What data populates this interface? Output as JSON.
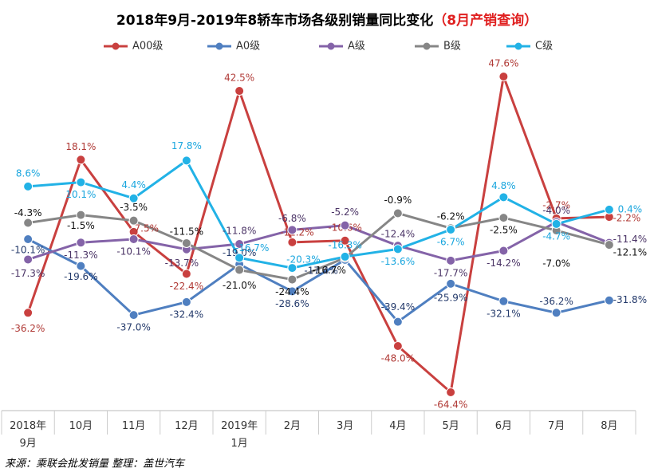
{
  "chart_data": {
    "type": "line",
    "title": "2018年9月-2019年8轿车市场各级别销量同比变化",
    "subtitle": "（8月产销查询）",
    "source": "来源：乘联会批发销量    整理：盖世汽车",
    "categories": [
      "2018年\n9月",
      "10月",
      "11月",
      "12月",
      "2019年\n1月",
      "2月",
      "3月",
      "4月",
      "5月",
      "6月",
      "7月",
      "8月"
    ],
    "series": [
      {
        "name": "A00级",
        "color": "#c9403f",
        "label_color": "#b03a36",
        "values": [
          -36.2,
          18.1,
          -7.5,
          -22.4,
          42.5,
          -11.2,
          -10.6,
          -48.0,
          -64.4,
          47.6,
          -2.7,
          -2.2
        ],
        "value_labels": [
          "-36.2%",
          "18.1%",
          "-7.5%",
          "-22.4%",
          "42.5%",
          "-11.2%",
          "-10.6%",
          "-48.0%",
          "-64.4%",
          "47.6%",
          "-2.7%",
          "-2.2%"
        ]
      },
      {
        "name": "A0级",
        "color": "#4f7fc0",
        "label_color": "#243a6b",
        "values": [
          -10.1,
          -19.6,
          -37.0,
          -32.4,
          -19.0,
          -28.6,
          -17.4,
          -39.4,
          -25.9,
          -32.1,
          -36.2,
          -31.8
        ],
        "value_labels": [
          "-10.1%",
          "-19.6%",
          "-37.0%",
          "-32.4%",
          "-19.0%",
          "-28.6%",
          "-17.4%",
          "-39.4%",
          "-25.9%",
          "-32.1%",
          "-36.2%",
          "-31.8%"
        ]
      },
      {
        "name": "A级",
        "color": "#8463a8",
        "label_color": "#4b3466",
        "values": [
          -17.3,
          -11.3,
          -10.1,
          -13.7,
          -11.8,
          -6.8,
          -5.2,
          -12.4,
          -17.7,
          -14.2,
          -4.0,
          -11.4
        ],
        "value_labels": [
          "-17.3%",
          "-11.3%",
          "-10.1%",
          "-13.7%",
          "-11.8%",
          "-6.8%",
          "-5.2%",
          "-12.4%",
          "-17.7%",
          "-14.2%",
          "-4.0%",
          "-11.4%"
        ]
      },
      {
        "name": "B级",
        "color": "#868686",
        "label_color": "#111111",
        "values": [
          -4.3,
          -1.5,
          -3.5,
          -11.5,
          -21.0,
          -24.4,
          -16.7,
          -0.9,
          -6.2,
          -2.5,
          -7.0,
          -12.1
        ],
        "value_labels": [
          "-4.3%",
          "-1.5%",
          "-3.5%",
          "-11.5%",
          "-21.0%",
          "-24.4%",
          "-16.7%",
          "-0.9%",
          "-6.2%",
          "-2.5%",
          "-7.0%",
          "-12.1%"
        ]
      },
      {
        "name": "C级",
        "color": "#22b2e6",
        "label_color": "#1aa6de",
        "values": [
          8.6,
          10.1,
          4.4,
          17.8,
          -16.7,
          -20.3,
          -16.3,
          -13.6,
          -6.7,
          4.8,
          -4.7,
          0.4
        ],
        "value_labels": [
          "8.6%",
          "10.1%",
          "4.4%",
          "17.8%",
          "-16.7%",
          "-20.3%",
          "-16.3%",
          "-13.6%",
          "-6.7%",
          "4.8%",
          "-4.7%",
          "0.4%"
        ]
      }
    ]
  }
}
